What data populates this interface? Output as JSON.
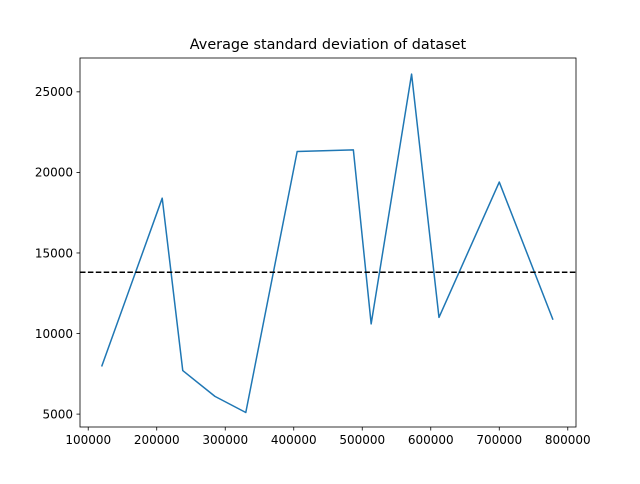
{
  "chart_data": {
    "type": "line",
    "title": "Average standard deviation of dataset",
    "xlabel": "",
    "ylabel": "",
    "xlim": [
      88000,
      812000
    ],
    "ylim": [
      4200,
      27100
    ],
    "xticks": [
      100000,
      200000,
      300000,
      400000,
      500000,
      600000,
      700000,
      800000
    ],
    "yticks": [
      5000,
      10000,
      15000,
      20000,
      25000
    ],
    "grid": false,
    "series": [
      {
        "name": "",
        "color": "#1f77b4",
        "x": [
          120000,
          208000,
          238000,
          285000,
          330000,
          405000,
          487000,
          513000,
          572000,
          612000,
          700000,
          778000
        ],
        "y": [
          8000,
          18400,
          7700,
          6100,
          5100,
          21300,
          21400,
          10600,
          26100,
          11000,
          19400,
          10900
        ]
      }
    ],
    "reference_lines": [
      {
        "orientation": "horizontal",
        "y": 13800,
        "style": "dashed",
        "color": "#000000"
      }
    ]
  }
}
